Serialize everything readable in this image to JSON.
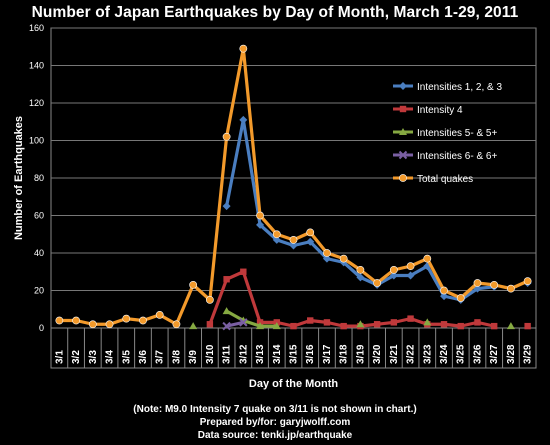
{
  "chart_data": {
    "type": "line",
    "title": "Number of Japan Earthquakes by Day of Month, March 1-29, 2011",
    "xlabel": "Day of the Month",
    "ylabel": "Number  of  Earthquakes",
    "ylim": [
      0,
      160
    ],
    "yticks": [
      0,
      20,
      40,
      60,
      80,
      100,
      120,
      140,
      160
    ],
    "grid": true,
    "legend": "right",
    "categories": [
      "3/1",
      "3/2",
      "3/3",
      "3/4",
      "3/5",
      "3/6",
      "3/7",
      "3/8",
      "3/9",
      "3/10",
      "3/11",
      "3/12",
      "3/13",
      "3/14",
      "3/15",
      "3/16",
      "3/17",
      "3/18",
      "3/19",
      "3/20",
      "3/21",
      "3/22",
      "3/23",
      "3/24",
      "3/25",
      "3/26",
      "3/27",
      "3/28",
      "3/29"
    ],
    "series": [
      {
        "name": "Intensities 1, 2, & 3",
        "color": "#4a7ec0",
        "marker": "diamond",
        "values": [
          null,
          null,
          null,
          null,
          null,
          null,
          null,
          null,
          null,
          null,
          65,
          111,
          55,
          47,
          44,
          46,
          37,
          35,
          27,
          23,
          28,
          28,
          33,
          17,
          15,
          21,
          22,
          null,
          24
        ]
      },
      {
        "name": "Intensity 4",
        "color": "#c0393b",
        "marker": "square",
        "values": [
          null,
          null,
          null,
          null,
          null,
          null,
          null,
          null,
          null,
          2,
          26,
          30,
          3,
          3,
          1,
          4,
          3,
          1,
          1,
          2,
          3,
          5,
          2,
          2,
          1,
          3,
          1,
          null,
          1
        ]
      },
      {
        "name": "Intensities 5- & 5+",
        "color": "#86a942",
        "marker": "triangle",
        "values": [
          null,
          null,
          null,
          null,
          null,
          null,
          null,
          null,
          1,
          null,
          9,
          4,
          1,
          1,
          null,
          null,
          null,
          null,
          2,
          null,
          null,
          null,
          3,
          null,
          null,
          null,
          null,
          1,
          null
        ]
      },
      {
        "name": "Intensities 6- & 6+",
        "color": "#7a5fa3",
        "marker": "x",
        "values": [
          null,
          null,
          null,
          null,
          null,
          null,
          null,
          null,
          null,
          null,
          1,
          3,
          null,
          null,
          null,
          null,
          null,
          null,
          null,
          null,
          null,
          null,
          null,
          null,
          null,
          null,
          null,
          null,
          null
        ]
      },
      {
        "name": "Total quakes",
        "color": "#f39a2b",
        "marker": "circle",
        "values": [
          4,
          4,
          2,
          2,
          5,
          4,
          7,
          2,
          23,
          15,
          102,
          149,
          60,
          50,
          47,
          51,
          40,
          37,
          31,
          24,
          31,
          33,
          37,
          20,
          16,
          24,
          23,
          21,
          25
        ]
      }
    ]
  },
  "notes": {
    "note1": "(Note:  M9.0 Intensity 7 quake on 3/11 is not shown in chart.)",
    "note2": "Prepared by/for:  garyjwolff.com",
    "note3": "Data source:  tenki.jp/earthquake"
  }
}
